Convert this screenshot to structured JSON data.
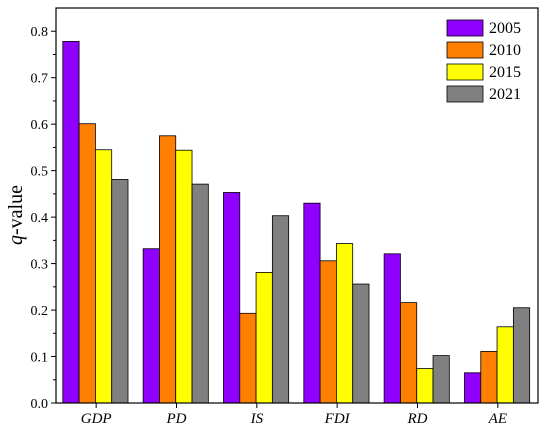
{
  "chart_data": {
    "type": "bar",
    "categories": [
      "GDP",
      "PD",
      "IS",
      "FDI",
      "RD",
      "AE"
    ],
    "series": [
      {
        "name": "2005",
        "color": "#8f00ff",
        "values": [
          0.778,
          0.332,
          0.453,
          0.43,
          0.321,
          0.065
        ]
      },
      {
        "name": "2010",
        "color": "#ff7f00",
        "values": [
          0.601,
          0.575,
          0.193,
          0.306,
          0.216,
          0.111
        ]
      },
      {
        "name": "2015",
        "color": "#ffff00",
        "values": [
          0.545,
          0.544,
          0.281,
          0.343,
          0.074,
          0.164
        ]
      },
      {
        "name": "2021",
        "color": "#808080",
        "values": [
          0.481,
          0.471,
          0.403,
          0.256,
          0.102,
          0.205
        ]
      }
    ],
    "ylabel_italic": "q",
    "ylabel_rest": "-value",
    "ylim": [
      0,
      0.85
    ],
    "yticks": [
      "0.0",
      "0.1",
      "0.2",
      "0.3",
      "0.4",
      "0.5",
      "0.6",
      "0.7",
      "0.8"
    ],
    "legend_position": "top-right",
    "grid": false
  }
}
